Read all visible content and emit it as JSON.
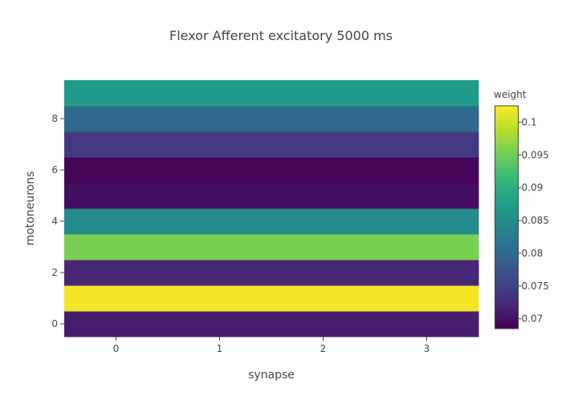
{
  "chart_data": {
    "type": "heatmap",
    "title": "Flexor Afferent excitatory 5000 ms",
    "xlabel": "synapse",
    "ylabel": "motoneurons",
    "x": [
      0,
      1,
      2,
      3
    ],
    "y": [
      0,
      1,
      2,
      3,
      4,
      5,
      6,
      7,
      8,
      9
    ],
    "x_ticks": [
      0,
      1,
      2,
      3
    ],
    "y_ticks": [
      0,
      2,
      4,
      6,
      8
    ],
    "x_range": [
      -0.5,
      3.5
    ],
    "y_range": [
      -0.5,
      9.5
    ],
    "colorscale": "Viridis",
    "colorbar": {
      "title": "weight",
      "range": [
        0.0685,
        0.1025
      ],
      "ticks": [
        0.07,
        0.075,
        0.08,
        0.085,
        0.09,
        0.095,
        0.1
      ],
      "tick_labels": [
        "0.07",
        "0.075",
        "0.08",
        "0.085",
        "0.09",
        "0.095",
        "0.1"
      ]
    },
    "z": [
      [
        0.0712,
        0.0712,
        0.0712,
        0.0712
      ],
      [
        0.102,
        0.102,
        0.102,
        0.102
      ],
      [
        0.0722,
        0.0722,
        0.0722,
        0.0722
      ],
      [
        0.0955,
        0.0955,
        0.0955,
        0.0955
      ],
      [
        0.0848,
        0.0848,
        0.0848,
        0.0848
      ],
      [
        0.0697,
        0.0697,
        0.0697,
        0.0697
      ],
      [
        0.0688,
        0.0688,
        0.0688,
        0.0688
      ],
      [
        0.0742,
        0.0742,
        0.0742,
        0.0742
      ],
      [
        0.08,
        0.08,
        0.08,
        0.08
      ],
      [
        0.087,
        0.087,
        0.087,
        0.087
      ]
    ]
  }
}
